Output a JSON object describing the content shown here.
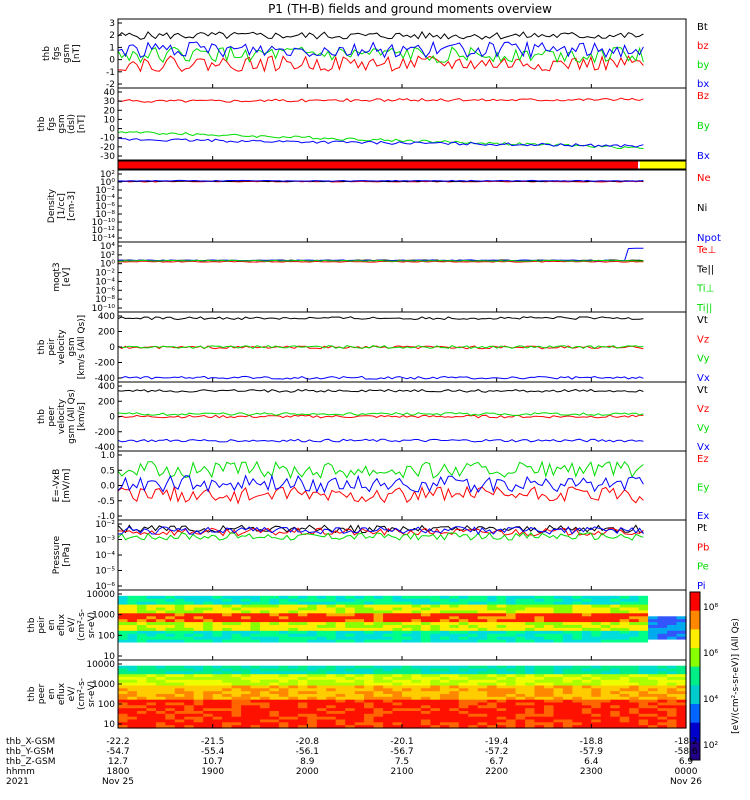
{
  "title": "P1 (TH-B) fields and ground moments overview",
  "panels": [
    {
      "id": "fgs",
      "ylabel": [
        "thb",
        "fgs",
        "gsm",
        "[nT]"
      ],
      "ticks": [
        "3",
        "2",
        "1",
        "0",
        "-1",
        "-2"
      ],
      "legend": [
        "Bt",
        "bz",
        "by",
        "bx"
      ]
    },
    {
      "id": "fgs_dsl",
      "ylabel": [
        "thb",
        "fgs",
        "gsm",
        "(dsl)",
        "[nT]"
      ],
      "ticks": [
        "40",
        "30",
        "20",
        "10",
        "0",
        "-10",
        "-20",
        "-30"
      ],
      "legend": [
        "Bz",
        "By",
        "Bx"
      ]
    },
    {
      "id": "density",
      "ylabel": [
        "Density",
        "[1/cc]",
        "[cm-3]"
      ],
      "ticks": [
        "10²",
        "10⁰",
        "10⁻²",
        "10⁻⁴",
        "10⁻⁶",
        "10⁻⁸",
        "10⁻¹⁰",
        "10⁻¹²",
        "10⁻¹⁴"
      ],
      "legend": [
        "Ne",
        "Ni",
        "Npot"
      ]
    },
    {
      "id": "temp",
      "ylabel": [
        "moqt3",
        "[eV]"
      ],
      "ticks": [
        "10⁴",
        "10²",
        "10⁰",
        "10⁻²",
        "10⁻⁴",
        "10⁻⁶",
        "10⁻⁸",
        "10⁻¹⁰"
      ],
      "legend": [
        "Te⊥",
        "Te||",
        "Ti⊥",
        "Ti||"
      ]
    },
    {
      "id": "peir_vel",
      "ylabel": [
        "thb",
        "peir",
        "velocity",
        "gsm",
        "[km/s (All Qs)]"
      ],
      "ticks": [
        "400",
        "200",
        "0",
        "-200",
        "-400"
      ],
      "legend": [
        "Vt",
        "Vz",
        "Vy",
        "Vx"
      ]
    },
    {
      "id": "peer_vel",
      "ylabel": [
        "thb",
        "peer",
        "velocity",
        "gsm (All Qs)",
        "[km/s]"
      ],
      "ticks": [
        "400",
        "200",
        "0",
        "-200",
        "-400"
      ],
      "legend": [
        "Vt",
        "Vz",
        "Vy",
        "Vx"
      ]
    },
    {
      "id": "efield",
      "ylabel": [
        "E=-VxB",
        "[mV/m]"
      ],
      "ticks": [
        "1.0",
        "0.5",
        "0.0",
        "-0.5",
        "-1.0"
      ],
      "legend": [
        "Ez",
        "Ey",
        "Ex"
      ]
    },
    {
      "id": "pressure",
      "ylabel": [
        "Pressure",
        "[nPa]"
      ],
      "ticks": [
        "10⁻²",
        "10⁻³",
        "10⁻⁴",
        "10⁻⁵",
        "10⁻⁶"
      ],
      "legend": [
        "Pt",
        "Pb",
        "Pe",
        "Pi"
      ]
    },
    {
      "id": "peir_spec",
      "ylabel": [
        "thb",
        "peir",
        "en",
        "eflux",
        "eV/",
        "(cm²-s-",
        "sr-eV)"
      ],
      "ticks": [
        "10000",
        "1000",
        "100",
        "10"
      ],
      "legend": []
    },
    {
      "id": "peer_spec",
      "ylabel": [
        "thb",
        "peer",
        "en",
        "eflux",
        "eV/",
        "(cm²-s-",
        "sr-eV)"
      ],
      "ticks": [
        "10000",
        "1000",
        "100",
        "10"
      ],
      "legend": []
    }
  ],
  "colorbar": {
    "label": "[eV/(cm²-s-sr-eV)] (All Qs)",
    "ticks": [
      "10⁸",
      "10⁶",
      "10⁴",
      "10²"
    ]
  },
  "ephemeris": {
    "row_labels": [
      "thb_X-GSM",
      "thb_Y-GSM",
      "thb_Z-GSM",
      "hhmm",
      "2021"
    ],
    "columns": [
      [
        "-22.2",
        "-54.7",
        "12.7",
        "1800",
        "Nov 25"
      ],
      [
        "-21.5",
        "-55.4",
        "10.7",
        "1900",
        ""
      ],
      [
        "-20.8",
        "-56.1",
        "8.9",
        "2000",
        ""
      ],
      [
        "-20.1",
        "-56.7",
        "7.5",
        "2100",
        ""
      ],
      [
        "-19.4",
        "-57.2",
        "6.7",
        "2200",
        ""
      ],
      [
        "-18.8",
        "-57.9",
        "6.4",
        "2300",
        ""
      ],
      [
        "-18.2",
        "-58.6",
        "6.9",
        "0000",
        "Nov 26"
      ]
    ]
  },
  "colors": {
    "black": "#000000",
    "red": "#ff0000",
    "green": "#00dd00",
    "blue": "#0000ff",
    "mode_bar_red": "#ff0000",
    "mode_bar_yellow": "#ffff00"
  },
  "chart_data": [
    {
      "type": "line",
      "title": "P1 (TH-B) fields and ground moments overview",
      "x_hours": [
        18,
        19,
        20,
        21,
        22,
        23,
        24
      ],
      "series": [
        {
          "name": "Bt",
          "color": "black",
          "base": 1.9,
          "noise": 0.3
        },
        {
          "name": "bz",
          "color": "red",
          "base": -0.3,
          "noise": 0.6
        },
        {
          "name": "by",
          "color": "green",
          "base": 0.4,
          "noise": 0.6
        },
        {
          "name": "bx",
          "color": "blue",
          "base": 0.8,
          "noise": 0.6
        }
      ],
      "ylim": [
        -2.2,
        3.2
      ]
    },
    {
      "type": "line",
      "series": [
        {
          "name": "Bz",
          "color": "red",
          "base": 28,
          "end": 30
        },
        {
          "name": "By",
          "color": "green",
          "base": -5,
          "end": -22
        },
        {
          "name": "Bx",
          "color": "blue",
          "base": -13,
          "end": -20
        }
      ],
      "ylim": [
        -35,
        42
      ]
    },
    {
      "type": "line",
      "log": true,
      "series": [
        {
          "name": "Ne",
          "color": "red",
          "base": 0.1
        },
        {
          "name": "Ni",
          "color": "black",
          "base": 0.2
        },
        {
          "name": "Npot",
          "color": "blue",
          "base": 0.3
        }
      ],
      "ylim_exp": [
        -15,
        3
      ]
    },
    {
      "type": "line",
      "log": true,
      "series": [
        {
          "name": "Te⊥",
          "color": "red",
          "base": 0.5
        },
        {
          "name": "Te||",
          "color": "black",
          "base": 0.8
        },
        {
          "name": "Ti⊥",
          "color": "blue",
          "base": 0.8,
          "jump": 3.5
        },
        {
          "name": "Ti||",
          "color": "green",
          "base": 0.7
        }
      ],
      "ylim_exp": [
        -11,
        5
      ]
    },
    {
      "type": "line",
      "series": [
        {
          "name": "Vt",
          "color": "black",
          "base": 390
        },
        {
          "name": "Vz",
          "color": "red",
          "base": 10
        },
        {
          "name": "Vy",
          "color": "green",
          "base": 15
        },
        {
          "name": "Vx",
          "color": "blue",
          "base": -385
        }
      ],
      "ylim": [
        -440,
        470
      ]
    },
    {
      "type": "line",
      "series": [
        {
          "name": "Vt",
          "color": "black",
          "base": 320
        },
        {
          "name": "Vz",
          "color": "red",
          "base": 0
        },
        {
          "name": "Vy",
          "color": "green",
          "base": 30
        },
        {
          "name": "Vx",
          "color": "blue",
          "base": -300
        }
      ],
      "ylim": [
        -430,
        430
      ]
    },
    {
      "type": "line",
      "series": [
        {
          "name": "Ez",
          "color": "red",
          "base": -0.3
        },
        {
          "name": "Ey",
          "color": "green",
          "base": 0.5
        },
        {
          "name": "Ex",
          "color": "blue",
          "base": 0.05
        }
      ],
      "ylim": [
        -1.1,
        1.1
      ]
    },
    {
      "type": "line",
      "log": true,
      "series": [
        {
          "name": "Pt",
          "color": "black",
          "base": -2.4
        },
        {
          "name": "Pb",
          "color": "red",
          "base": -2.6
        },
        {
          "name": "Pe",
          "color": "green",
          "base": -2.9
        },
        {
          "name": "Pi",
          "color": "blue",
          "base": -2.5
        }
      ],
      "ylim_exp": [
        -6.5,
        -1.8
      ]
    },
    {
      "type": "heatmap",
      "ylabel": "eV",
      "ylim": [
        3,
        20000
      ]
    },
    {
      "type": "heatmap",
      "ylabel": "eV",
      "ylim": [
        3,
        20000
      ]
    }
  ]
}
